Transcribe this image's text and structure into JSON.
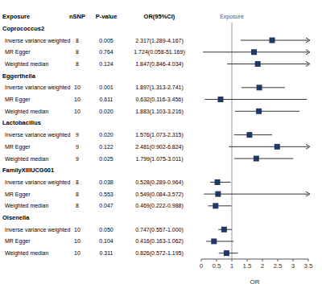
{
  "chart_data": {
    "type": "forest",
    "columns": [
      "Exposure",
      "nSNP",
      "P-value",
      "OR(95%CI)"
    ],
    "reference": 1,
    "reference_label": "Exposure",
    "xlabel": "OR",
    "xlim": [
      0,
      3.5
    ],
    "xticks": [
      0,
      0.5,
      1,
      1.5,
      2,
      2.5,
      3,
      3.5
    ],
    "color": "#1f3864",
    "marker": "square",
    "groups": [
      {
        "name": "Coprococcus2",
        "rows": [
          {
            "method": "Inverse variance weighted",
            "nsnp": 8,
            "p": "0.005",
            "value": 2.317,
            "lower": 1.289,
            "upper": 4.167,
            "value_label": "2.317(1.289-4.167)"
          },
          {
            "method": "MR Egger",
            "nsnp": 8,
            "p": "0.764",
            "value": 1.724,
            "lower": 0.058,
            "upper": 51.169,
            "value_label": "1.724(0.058-51.169)"
          },
          {
            "method": "Weighted median",
            "nsnp": 8,
            "p": "0.124",
            "value": 1.847,
            "lower": 0.846,
            "upper": 4.034,
            "value_label": "1.847(0.846-4.034)"
          }
        ]
      },
      {
        "name": "Eggerthella",
        "rows": [
          {
            "method": "Inverse variance weighted",
            "nsnp": 10,
            "p": "0.001",
            "value": 1.897,
            "lower": 1.313,
            "upper": 2.741,
            "value_label": "1.897(1.313-2.741)"
          },
          {
            "method": "MR Egger",
            "nsnp": 10,
            "p": "0.611",
            "value": 0.632,
            "lower": 0.116,
            "upper": 3.456,
            "value_label": "0.632(0.116-3.456)"
          },
          {
            "method": "Weighted median",
            "nsnp": 10,
            "p": "0.020",
            "value": 1.883,
            "lower": 1.103,
            "upper": 3.216,
            "value_label": "1.883(1.103-3.216)"
          }
        ]
      },
      {
        "name": "Lactobacillus",
        "rows": [
          {
            "method": "Inverse variance weighted",
            "nsnp": 9,
            "p": "0.020",
            "value": 1.576,
            "lower": 1.073,
            "upper": 2.315,
            "value_label": "1.576(1.073-2.315)"
          },
          {
            "method": "MR Egger",
            "nsnp": 9,
            "p": "0.122",
            "value": 2.481,
            "lower": 0.902,
            "upper": 6.824,
            "value_label": "2.481(0.902-6.824)"
          },
          {
            "method": "Weighted median",
            "nsnp": 9,
            "p": "0.025",
            "value": 1.799,
            "lower": 1.075,
            "upper": 3.011,
            "value_label": "1.799(1.075-3.011)"
          }
        ]
      },
      {
        "name": "FamilyXIIIUCG001",
        "rows": [
          {
            "method": "Inverse variance weighted",
            "nsnp": 8,
            "p": "0.038",
            "value": 0.528,
            "lower": 0.289,
            "upper": 0.964,
            "value_label": "0.528(0.289-0.964)"
          },
          {
            "method": "MR Egger",
            "nsnp": 8,
            "p": "0.553",
            "value": 0.549,
            "lower": 0.084,
            "upper": 3.572,
            "value_label": "0.549(0.084-3.572)"
          },
          {
            "method": "Weighted median",
            "nsnp": 8,
            "p": "0.047",
            "value": 0.469,
            "lower": 0.222,
            "upper": 0.988,
            "value_label": "0.469(0.222-0.988)"
          }
        ]
      },
      {
        "name": "Olsenella",
        "rows": [
          {
            "method": "Inverse variance weighted",
            "nsnp": 10,
            "p": "0.050",
            "value": 0.747,
            "lower": 0.557,
            "upper": 1.0,
            "value_label": "0.747(0.557-1.000)"
          },
          {
            "method": "MR Egger",
            "nsnp": 10,
            "p": "0.104",
            "value": 0.416,
            "lower": 0.163,
            "upper": 1.062,
            "value_label": "0.416(0.163-1.062)"
          },
          {
            "method": "Weighted median",
            "nsnp": 10,
            "p": "0.311",
            "value": 0.826,
            "lower": 0.572,
            "upper": 1.195,
            "value_label": "0.826(0.572-1.195)"
          }
        ]
      }
    ]
  }
}
